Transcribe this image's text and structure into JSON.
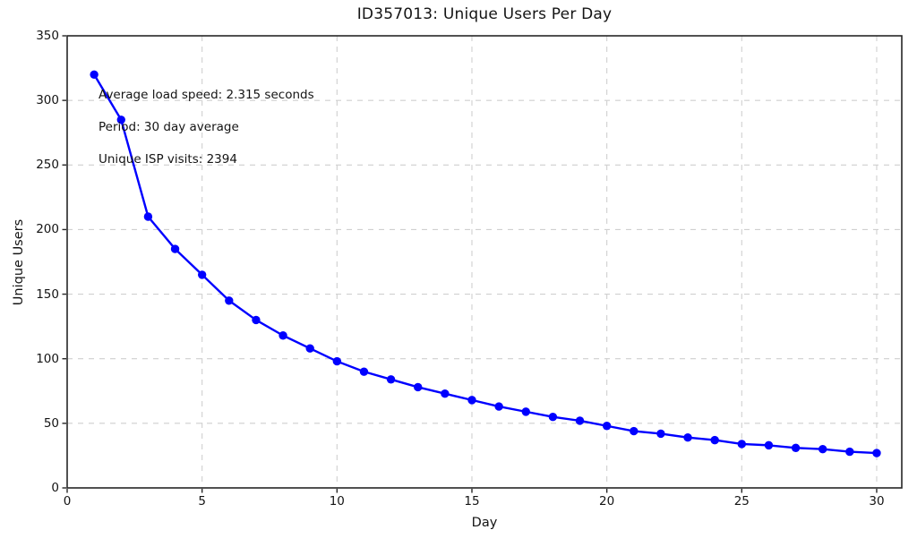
{
  "chart_data": {
    "type": "line",
    "title": "ID357013: Unique Users Per Day",
    "xlabel": "Day",
    "ylabel": "Unique Users",
    "x": [
      1,
      2,
      3,
      4,
      5,
      6,
      7,
      8,
      9,
      10,
      11,
      12,
      13,
      14,
      15,
      16,
      17,
      18,
      19,
      20,
      21,
      22,
      23,
      24,
      25,
      26,
      27,
      28,
      29,
      30
    ],
    "series": [
      {
        "name": "unique-users",
        "values": [
          320,
          285,
          210,
          185,
          165,
          145,
          130,
          118,
          108,
          98,
          90,
          84,
          78,
          73,
          68,
          63,
          59,
          55,
          52,
          48,
          44,
          42,
          39,
          37,
          34,
          33,
          31,
          30,
          28,
          27
        ],
        "color": "#0000ff",
        "marker": "circle"
      }
    ],
    "xlim": [
      0,
      30.93
    ],
    "ylim": [
      0,
      350
    ],
    "xticks": [
      0,
      5,
      10,
      15,
      20,
      25,
      30
    ],
    "yticks": [
      0,
      50,
      100,
      150,
      200,
      250,
      300,
      350
    ],
    "grid": true,
    "grid_style": "dashed",
    "legend": false,
    "annotations": [
      "Average load speed: 2.315 seconds",
      "Period: 30 day average",
      "Unique ISP visits: 2394"
    ],
    "colors": {
      "line": "#0000ff",
      "grid": "#cfcfcf",
      "spine": "#262626",
      "text": "#141414",
      "background": "#ffffff"
    }
  }
}
